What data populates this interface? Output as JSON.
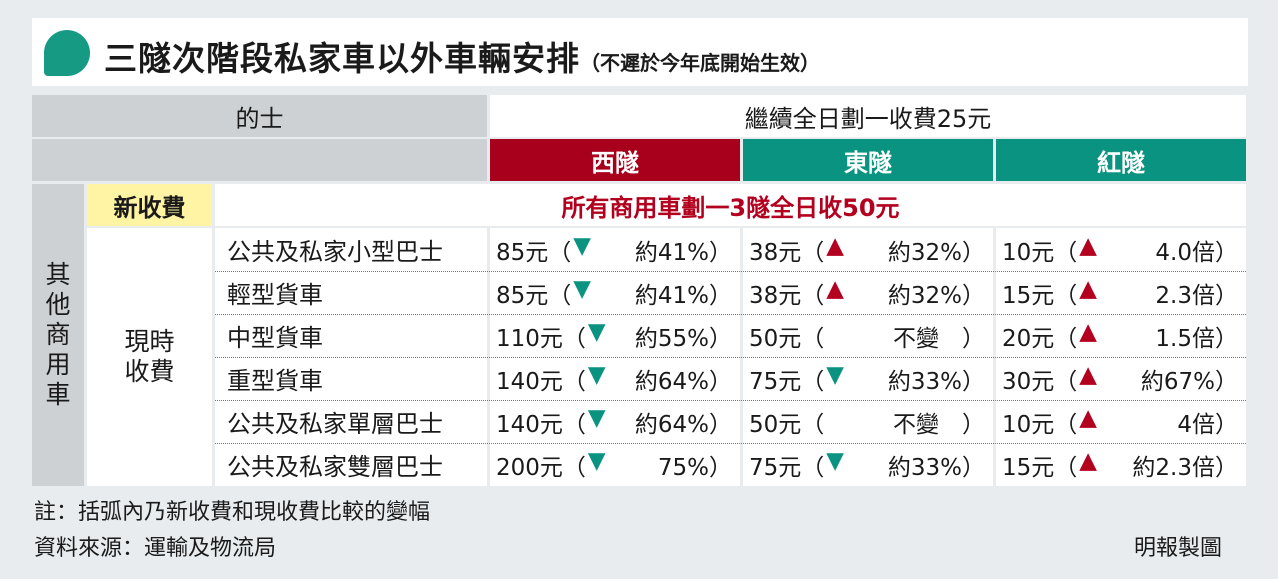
{
  "title": {
    "main": "三隧次階段私家車以外車輛安排",
    "sub": "（不遲於今年底開始生效）"
  },
  "taxi": {
    "label": "的士",
    "fee": "繼續全日劃一收費25元"
  },
  "tunnels": [
    "西隧",
    "東隧",
    "紅隧"
  ],
  "side": {
    "group": [
      "其",
      "他",
      "商",
      "用",
      "車"
    ],
    "new_fee_label": "新收費",
    "current_label": [
      "現時",
      "收費"
    ]
  },
  "new_fee_text": "所有商用車劃一3隧全日收50元",
  "rows": [
    {
      "name": "公共及私家小型巴士",
      "w": [
        "85元（",
        "▼",
        "約41%）"
      ],
      "e": [
        "38元（",
        "▲",
        "約32%）"
      ],
      "r": [
        "10元（",
        "▲",
        "4.0倍）"
      ]
    },
    {
      "name": "輕型貨車",
      "w": [
        "85元（",
        "▼",
        "約41%）"
      ],
      "e": [
        "38元（",
        "▲",
        "約32%）"
      ],
      "r": [
        "15元（",
        "▲",
        "2.3倍）"
      ]
    },
    {
      "name": "中型貨車",
      "w": [
        "110元（",
        "▼",
        "約55%）"
      ],
      "e": [
        "50元（",
        "",
        "不變　）"
      ],
      "r": [
        "20元（",
        "▲",
        "1.5倍）"
      ]
    },
    {
      "name": "重型貨車",
      "w": [
        "140元（",
        "▼",
        "約64%）"
      ],
      "e": [
        "75元（",
        "▼",
        "約33%）"
      ],
      "r": [
        "30元（",
        "▲",
        "約67%）"
      ]
    },
    {
      "name": "公共及私家單層巴士",
      "w": [
        "140元（",
        "▼",
        "約64%）"
      ],
      "e": [
        "50元（",
        "",
        "不變　）"
      ],
      "r": [
        "10元（",
        "▲",
        "4倍）"
      ]
    },
    {
      "name": "公共及私家雙層巴士",
      "w": [
        "200元（",
        "▼",
        "75%）"
      ],
      "e": [
        "75元（",
        "▼",
        "約33%）"
      ],
      "r": [
        "15元（",
        "▲",
        "約2.3倍）"
      ]
    }
  ],
  "footer": {
    "note": "註：括弧內乃新收費和現收費比較的變幅",
    "source": "資料來源：運輸及物流局",
    "credit": "明報製圖"
  },
  "colors": {
    "west": "#a8001c",
    "east": "#0a9381",
    "red_tunnel": "#0a9381",
    "accent": "#179a84"
  }
}
